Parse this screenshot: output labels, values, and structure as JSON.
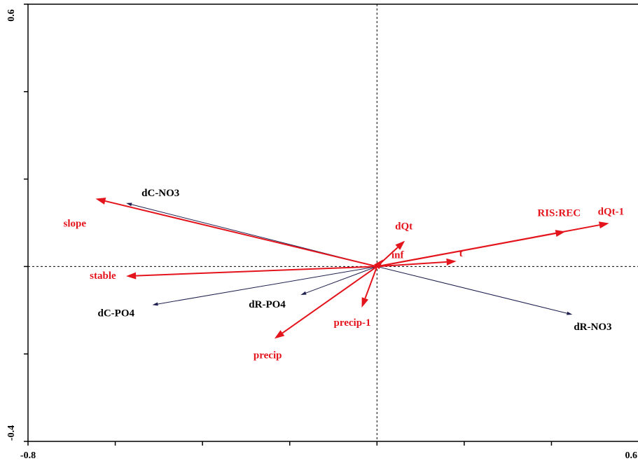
{
  "chart_data": {
    "type": "biplot",
    "xlim": [
      -0.8,
      0.6
    ],
    "ylim": [
      -0.4,
      0.6
    ],
    "x_tick_labels": [
      {
        "value": -0.8,
        "label": "-0.8"
      },
      {
        "value": 0.6,
        "label": "0.6"
      }
    ],
    "y_tick_labels": [
      {
        "value": 0.6,
        "label": "0.6"
      },
      {
        "value": -0.4,
        "label": "-0.4"
      }
    ],
    "x_minor_ticks": [
      -0.6,
      -0.4,
      -0.2,
      0.0,
      0.2,
      0.4
    ],
    "y_minor_ticks": [
      0.4,
      0.2,
      0.0,
      -0.2
    ],
    "origin_crosshair": true,
    "colors": {
      "response": "#000000",
      "response_line": "#1f1f4f",
      "explanatory": "#e4141c"
    },
    "response_vectors": [
      {
        "name": "dC-NO3",
        "x": -0.575,
        "y": 0.145
      },
      {
        "name": "dR-NO3",
        "x": 0.448,
        "y": -0.11
      },
      {
        "name": "dC-PO4",
        "x": -0.515,
        "y": -0.088
      },
      {
        "name": "dR-PO4",
        "x": -0.175,
        "y": -0.065
      }
    ],
    "explanatory_vectors": [
      {
        "name": "slope",
        "x": -0.645,
        "y": 0.155
      },
      {
        "name": "stable",
        "x": -0.575,
        "y": -0.022
      },
      {
        "name": "dQt-1",
        "x": 0.532,
        "y": 0.099
      },
      {
        "name": "RIS:REC",
        "x": 0.432,
        "y": 0.08
      },
      {
        "name": "dQt",
        "x": 0.064,
        "y": 0.059
      },
      {
        "name": "inf",
        "x": 0.014,
        "y": 0.016
      },
      {
        "name": "t",
        "x": 0.182,
        "y": 0.012
      },
      {
        "name": "precip-1",
        "x": -0.035,
        "y": -0.094
      },
      {
        "name": "precip",
        "x": -0.235,
        "y": -0.165
      }
    ]
  }
}
